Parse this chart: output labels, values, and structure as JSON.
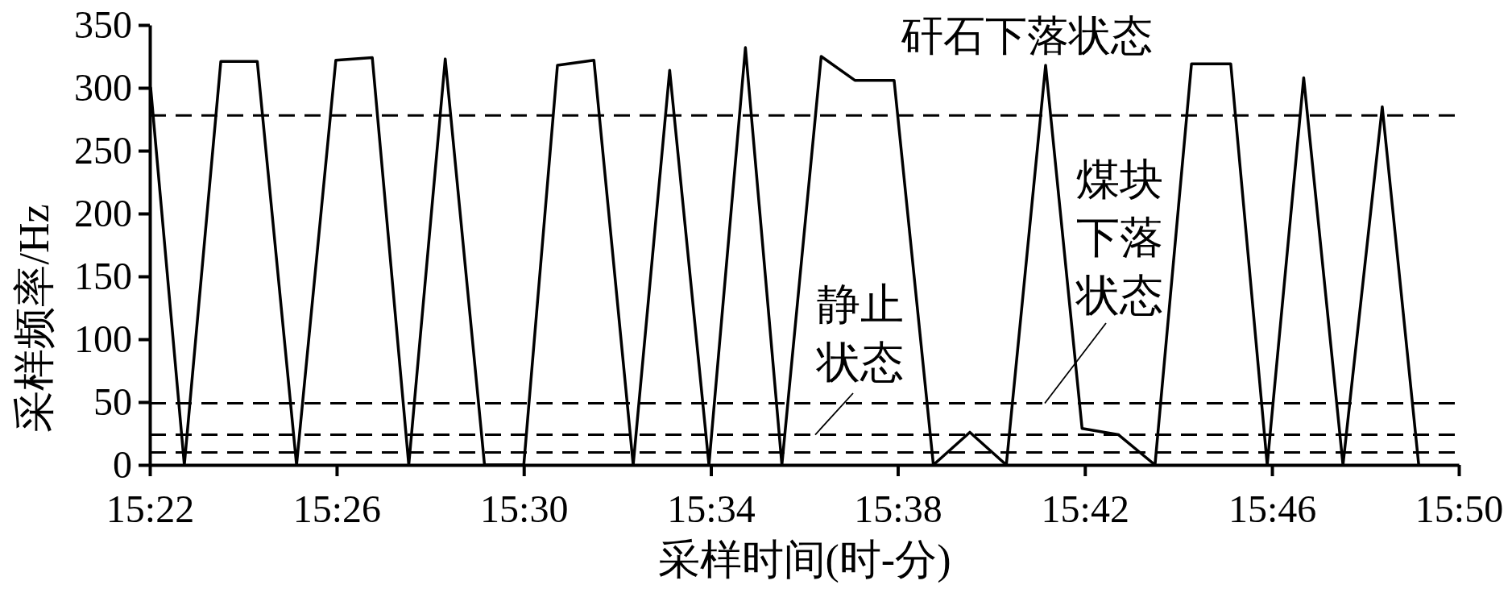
{
  "chart_data": {
    "type": "line",
    "xlabel": "采样时间(时-分)",
    "ylabel": "采样频率/Hz",
    "x": [
      15.367,
      15.379,
      15.392,
      15.405,
      15.419,
      15.433,
      15.446,
      15.459,
      15.472,
      15.486,
      15.5,
      15.512,
      15.525,
      15.539,
      15.552,
      15.566,
      15.579,
      15.592,
      15.606,
      15.618,
      15.632,
      15.646,
      15.659,
      15.672,
      15.686,
      15.699,
      15.712,
      15.725,
      15.738,
      15.752,
      15.765,
      15.778,
      15.792,
      15.806,
      15.819
    ],
    "values": [
      300,
      0,
      321,
      321,
      0,
      322,
      324,
      0,
      323,
      0,
      0,
      318,
      322,
      0,
      314,
      0,
      332,
      0,
      325,
      306,
      306,
      0,
      26,
      0,
      318,
      29,
      24,
      0,
      319,
      319,
      0,
      308,
      0,
      285,
      0
    ],
    "color": "#000000",
    "xlim": [
      15.3667,
      15.8333
    ],
    "xticks": [
      {
        "value": 15.3667,
        "label": "15:22"
      },
      {
        "value": 15.4333,
        "label": "15:26"
      },
      {
        "value": 15.5,
        "label": "15:30"
      },
      {
        "value": 15.5667,
        "label": "15:34"
      },
      {
        "value": 15.6333,
        "label": "15:38"
      },
      {
        "value": 15.7,
        "label": "15:42"
      },
      {
        "value": 15.7667,
        "label": "15:46"
      },
      {
        "value": 15.8333,
        "label": "15:50"
      }
    ],
    "ylim": [
      0,
      350
    ],
    "yticks": [
      0,
      50,
      100,
      150,
      200,
      250,
      300,
      350
    ],
    "ref_lines": [
      {
        "axis": "y",
        "value": 278,
        "label": "矸石下落状态",
        "color": "#000000",
        "line_style": "dashed"
      },
      {
        "axis": "y",
        "value": 24,
        "label": "静止状态",
        "color": "#000000",
        "line_style": "dashed"
      },
      {
        "axis": "y",
        "value": 49,
        "label": "煤块下落状态",
        "color": "#000000",
        "line_style": "dashed"
      },
      {
        "axis": "y",
        "value": 10,
        "color": "#000000",
        "line_style": "dashed"
      }
    ]
  }
}
